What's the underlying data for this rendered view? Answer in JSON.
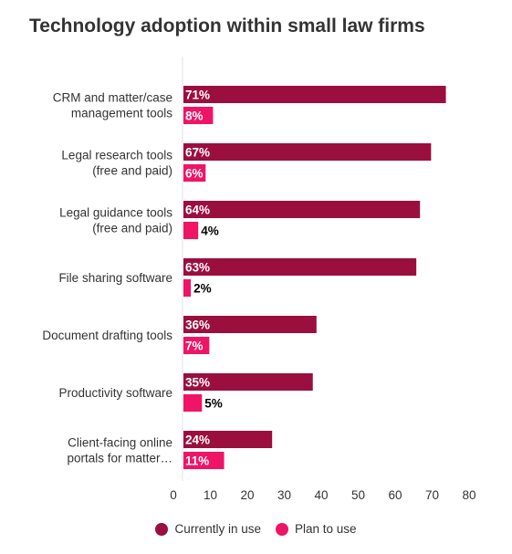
{
  "chart_data": {
    "type": "bar",
    "orientation": "horizontal",
    "title": "Technology adoption within small law firms",
    "categories": [
      [
        "CRM and matter/case",
        "management tools"
      ],
      [
        "Legal research tools",
        "(free and paid)"
      ],
      [
        "Legal guidance tools",
        "(free and paid)"
      ],
      [
        "File sharing software"
      ],
      [
        "Document drafting tools"
      ],
      [
        "Productivity software"
      ],
      [
        "Client-facing online",
        "portals for matter…"
      ]
    ],
    "series": [
      {
        "name": "Currently in use",
        "color": "#9b0f3f",
        "values": [
          71,
          67,
          64,
          63,
          36,
          35,
          24
        ],
        "labels": [
          "71%",
          "67%",
          "64%",
          "63%",
          "36%",
          "35%",
          "24%"
        ]
      },
      {
        "name": "Plan to use",
        "color": "#f01466",
        "values": [
          8,
          6,
          4,
          2,
          7,
          5,
          11
        ],
        "labels": [
          "8%",
          "6%",
          "4%",
          "2%",
          "7%",
          "5%",
          "11%"
        ]
      }
    ],
    "xlim": [
      0,
      80
    ],
    "xticks": [
      "0",
      "10",
      "20",
      "30",
      "40",
      "50",
      "60",
      "70",
      "80"
    ],
    "grid": false,
    "legend_position": "bottom"
  }
}
